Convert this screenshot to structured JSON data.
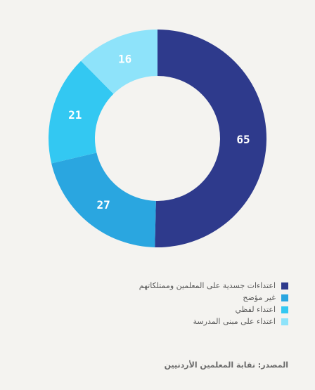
{
  "chart_data": {
    "type": "pie",
    "variant": "donut",
    "categories": [
      "اعتداءات جسدية على المعلمين وممتلكاتهم",
      "غير مؤضح",
      "اعتداء لفظي",
      "اعتداء على مبنى المدرسة"
    ],
    "values": [
      65,
      27,
      21,
      16
    ],
    "colors": [
      "#2e3a8c",
      "#2aa6e0",
      "#33c8f2",
      "#8ee3fa"
    ],
    "legend_position": "bottom-right"
  },
  "source_text": "المصدر: نقابة المعلمين الأردنيين"
}
